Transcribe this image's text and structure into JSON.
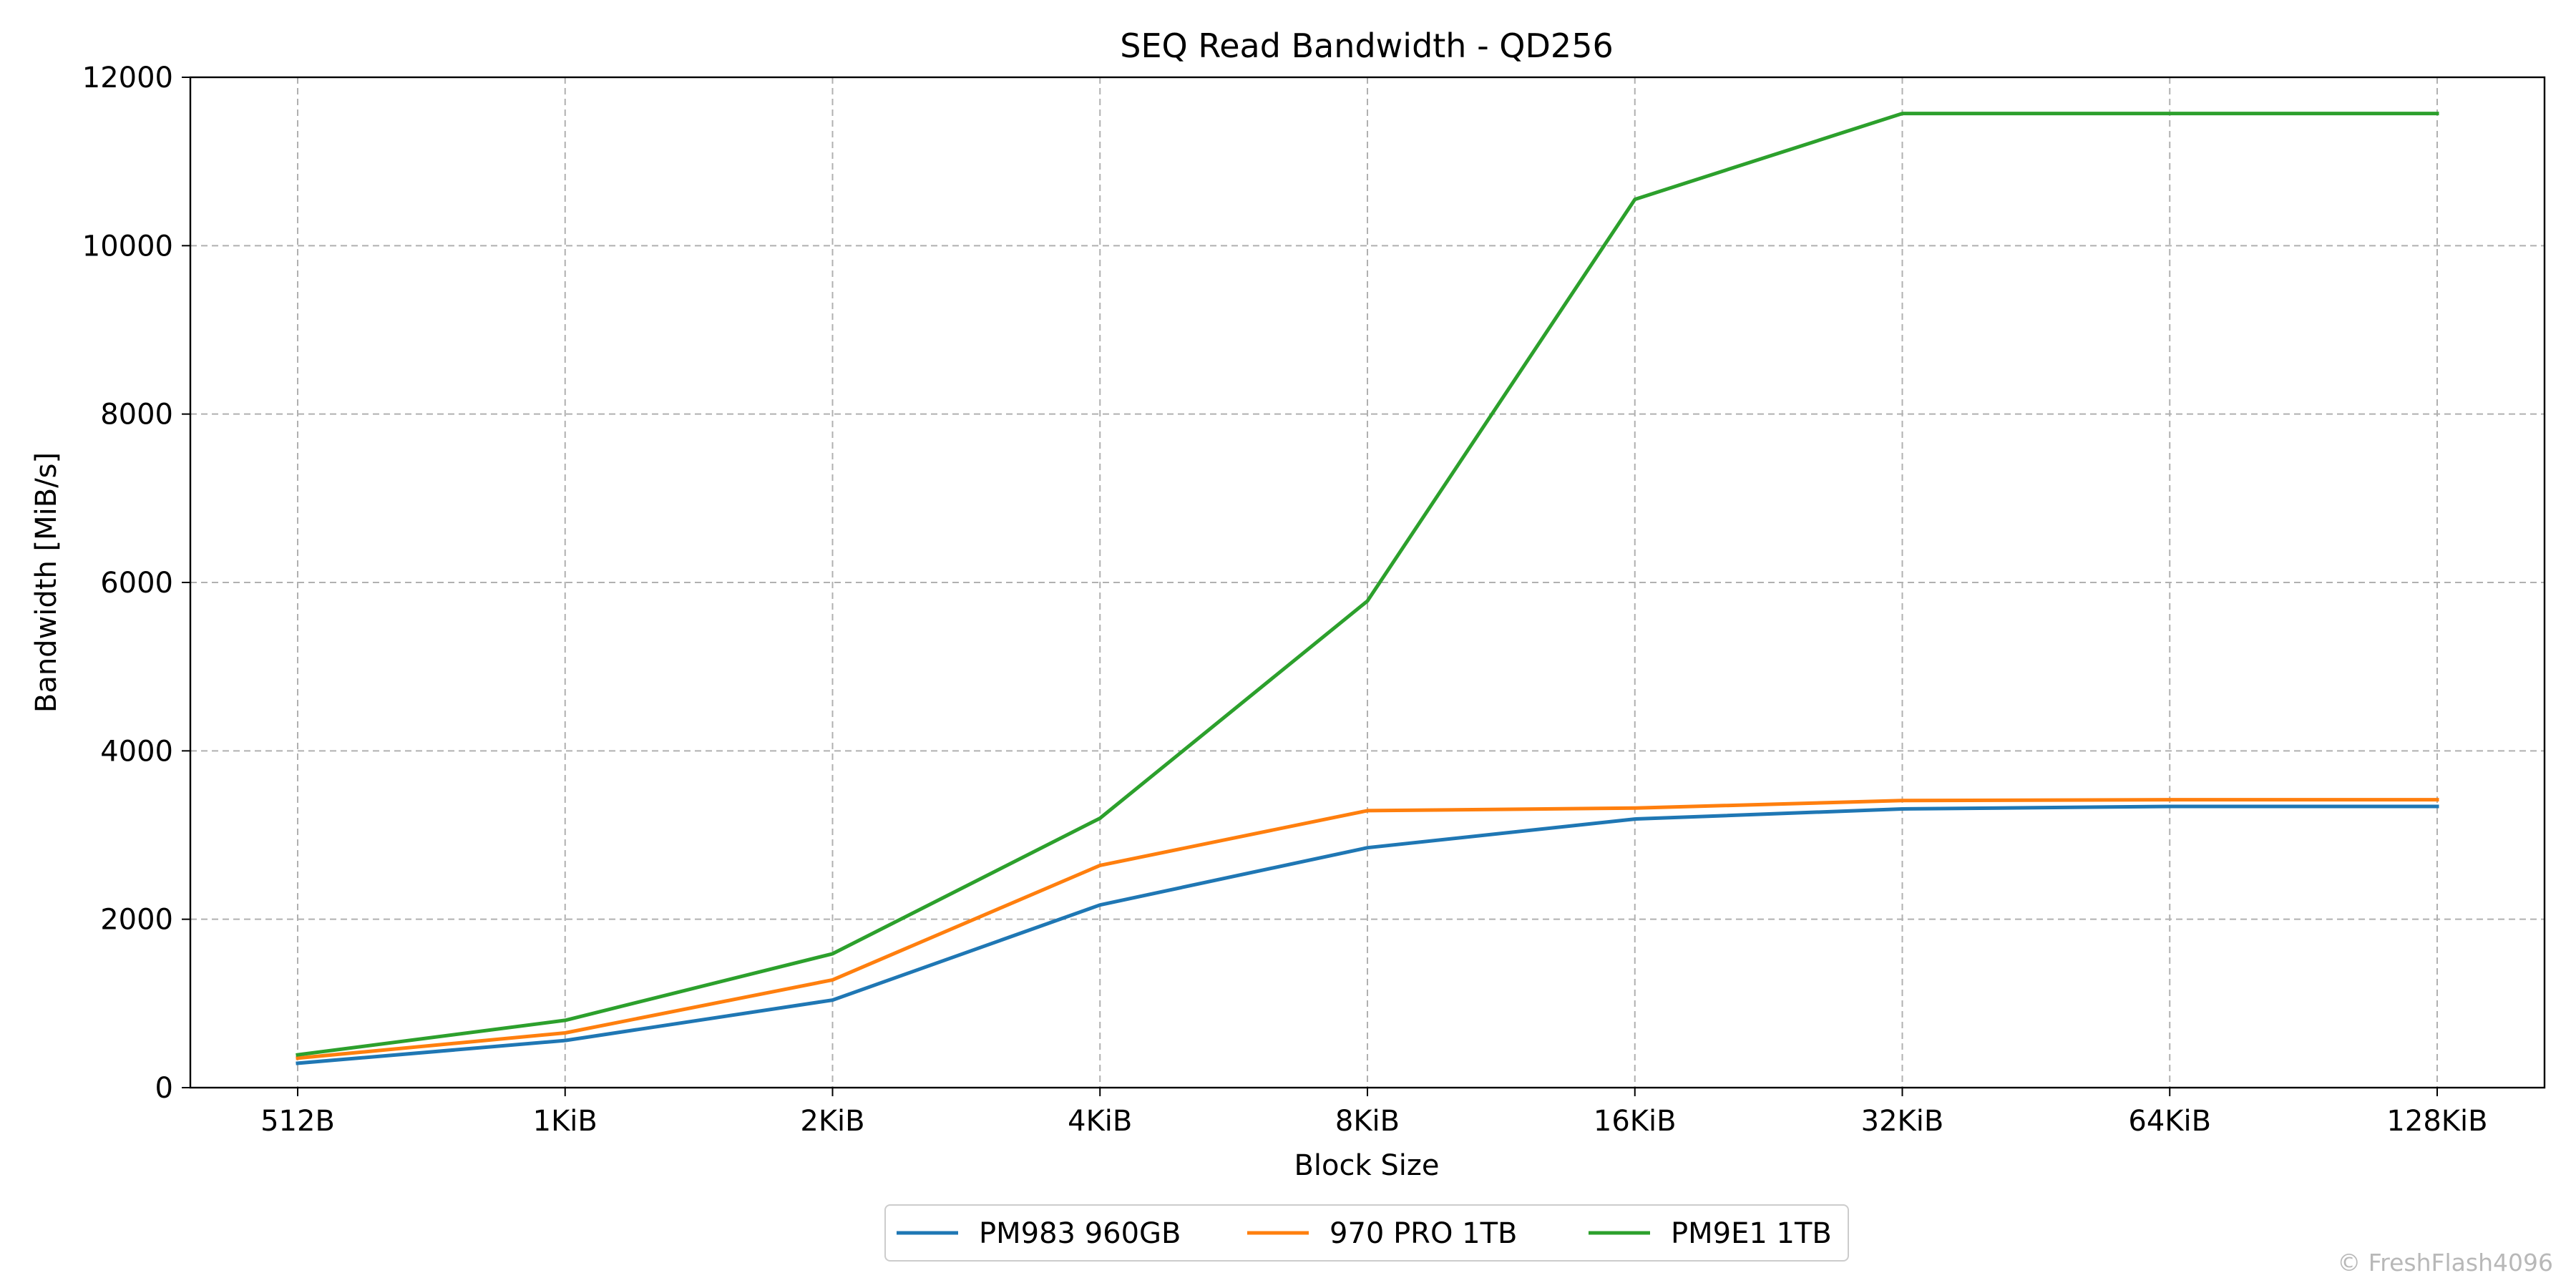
{
  "chart_data": {
    "type": "line",
    "title": "SEQ Read Bandwidth - QD256",
    "xlabel": "Block Size",
    "ylabel": "Bandwidth [MiB/s]",
    "categories": [
      "512B",
      "1KiB",
      "2KiB",
      "4KiB",
      "8KiB",
      "16KiB",
      "32KiB",
      "64KiB",
      "128KiB"
    ],
    "ylim": [
      0,
      12000
    ],
    "yticks": [
      0,
      2000,
      4000,
      6000,
      8000,
      10000,
      12000
    ],
    "grid": true,
    "legend_position": "bottom-center",
    "series": [
      {
        "name": "PM983 960GB",
        "color": "#1f77b4",
        "values": [
          290,
          560,
          1040,
          2170,
          2850,
          3190,
          3310,
          3340,
          3340
        ]
      },
      {
        "name": "970 PRO 1TB",
        "color": "#ff7f0e",
        "values": [
          350,
          650,
          1280,
          2640,
          3290,
          3320,
          3410,
          3420,
          3420
        ]
      },
      {
        "name": "PM9E1 1TB",
        "color": "#2ca02c",
        "values": [
          390,
          800,
          1590,
          3200,
          5780,
          10550,
          11570,
          11570,
          11570
        ]
      }
    ]
  },
  "credit": "© FreshFlash4096"
}
